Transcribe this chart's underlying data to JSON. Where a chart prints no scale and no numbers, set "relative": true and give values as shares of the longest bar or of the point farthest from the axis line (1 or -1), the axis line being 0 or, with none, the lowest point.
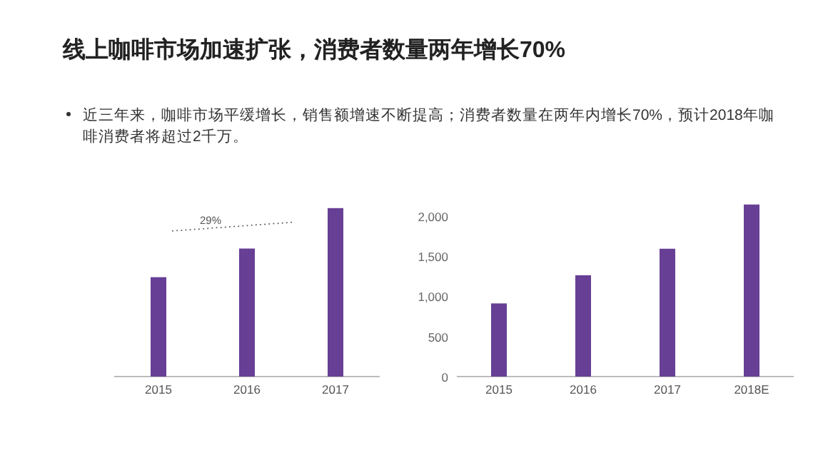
{
  "chart_data": [
    {
      "type": "bar",
      "title": "线上咖啡市场加速扩张，消费者数量两年增长70%",
      "subtitle": "近三年来，咖啡市场平缓增长，销售额增速不断提高；消费者数量在两年内增长70%，预计2018年咖啡消费者将超过2千万。",
      "categories": [
        "2015",
        "2016",
        "2017"
      ],
      "relative": true,
      "color": "#673f95",
      "values": [
        0.59,
        0.76,
        1
      ],
      "annotations": [
        "29%"
      ]
    },
    {
      "type": "bar",
      "categories": [
        "2015",
        "2016",
        "2017",
        "2018E"
      ],
      "color": "#673f95",
      "values": [
        910,
        1260,
        1590,
        2140
      ],
      "ylim": [
        0,
        2200
      ],
      "yticks": [
        0,
        {
          "value": 500,
          "label": "500"
        },
        {
          "value": 1000,
          "label": "1,000"
        },
        {
          "value": 1500,
          "label": "1,500"
        },
        {
          "value": 2000,
          "label": "2,000"
        }
      ]
    }
  ]
}
